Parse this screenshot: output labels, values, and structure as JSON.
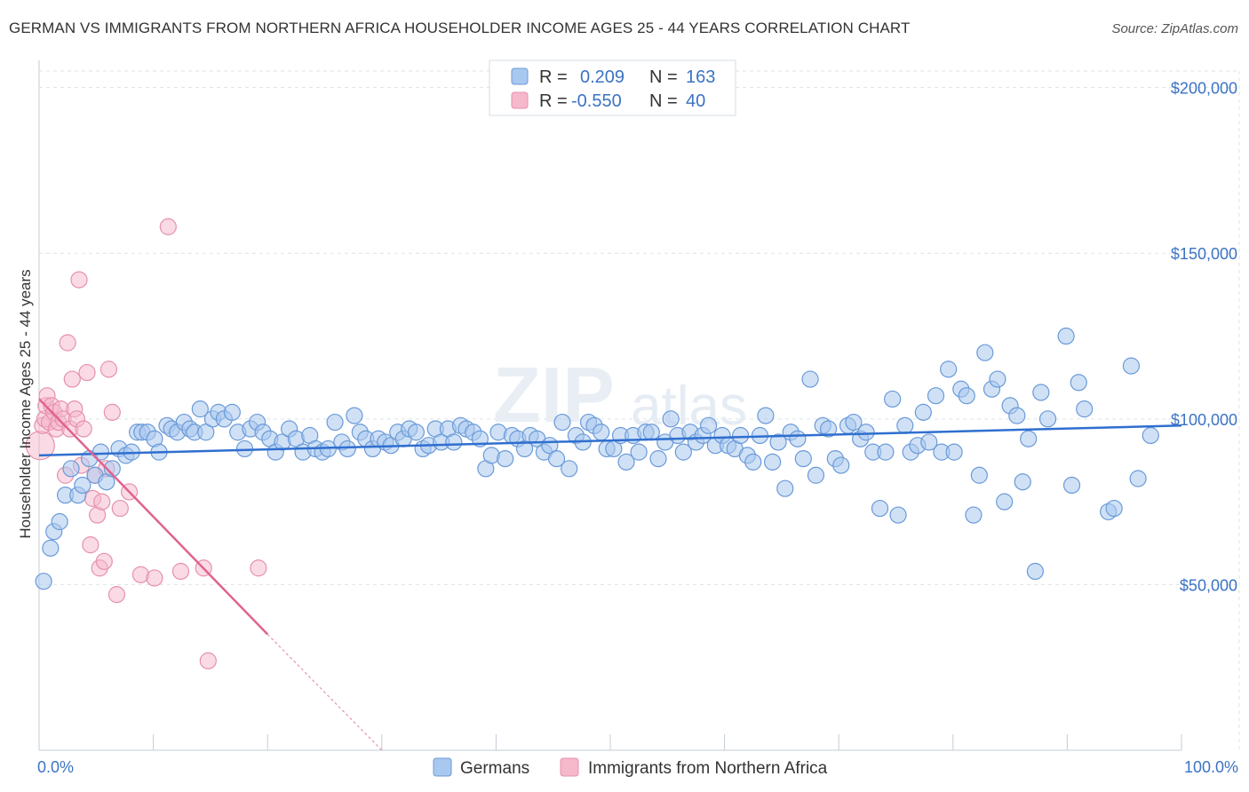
{
  "header": {
    "title": "GERMAN VS IMMIGRANTS FROM NORTHERN AFRICA HOUSEHOLDER INCOME AGES 25 - 44 YEARS CORRELATION CHART",
    "source": "Source: ZipAtlas.com"
  },
  "watermark": {
    "zip": "ZIP",
    "atlas": "atlas"
  },
  "legend_top": {
    "rows": [
      {
        "r_label": "R =",
        "r_value": "0.209",
        "n_label": "N =",
        "n_value": "163"
      },
      {
        "r_label": "R =",
        "r_value": "-0.550",
        "n_label": "N =",
        "n_value": "40"
      }
    ]
  },
  "legend_bottom": {
    "items": [
      "Germans",
      "Immigrants from Northern Africa"
    ]
  },
  "colors": {
    "germans_fill": "#a9c8ef",
    "germans_stroke": "#6a9ad8",
    "germans_line": "#2f6fcf",
    "immigrants_fill": "#f6b8cb",
    "immigrants_stroke": "#e690ad",
    "immigrants_line": "#e0628f",
    "grid": "#dde3ea",
    "axis_text": "#3b73c4"
  },
  "chart_data": {
    "type": "scatter",
    "title": "GERMAN VS IMMIGRANTS FROM NORTHERN AFRICA HOUSEHOLDER INCOME AGES 25 - 44 YEARS CORRELATION CHART",
    "xlabel": "",
    "ylabel": "Householder Income Ages 25 - 44 years",
    "xlim": [
      0,
      100
    ],
    "ylim": [
      0,
      205000
    ],
    "x_tick_labels": [
      "0.0%",
      "100.0%"
    ],
    "y_ticks": [
      50000,
      100000,
      150000,
      200000
    ],
    "y_tick_labels": [
      "$50,000",
      "$100,000",
      "$150,000",
      "$200,000"
    ],
    "grid": true,
    "legend_position": "top-center",
    "series": [
      {
        "name": "Germans",
        "r": 0.209,
        "n": 163,
        "trend": {
          "x": [
            0,
            100
          ],
          "y": [
            89000,
            98000
          ]
        },
        "points": [
          [
            0.4,
            51000
          ],
          [
            1.0,
            61000
          ],
          [
            1.3,
            66000
          ],
          [
            1.8,
            69000
          ],
          [
            2.3,
            77000
          ],
          [
            2.8,
            85000
          ],
          [
            3.4,
            77000
          ],
          [
            3.8,
            80000
          ],
          [
            4.4,
            88000
          ],
          [
            4.9,
            83000
          ],
          [
            5.4,
            90000
          ],
          [
            5.9,
            81000
          ],
          [
            6.4,
            85000
          ],
          [
            7.0,
            91000
          ],
          [
            7.6,
            89000
          ],
          [
            8.1,
            90000
          ],
          [
            8.6,
            96000
          ],
          [
            9.0,
            96000
          ],
          [
            9.5,
            96000
          ],
          [
            10.1,
            94000
          ],
          [
            10.5,
            90000
          ],
          [
            11.2,
            98000
          ],
          [
            11.6,
            97000
          ],
          [
            12.1,
            96000
          ],
          [
            12.7,
            99000
          ],
          [
            13.2,
            97000
          ],
          [
            13.6,
            96000
          ],
          [
            14.1,
            103000
          ],
          [
            14.6,
            96000
          ],
          [
            15.2,
            100000
          ],
          [
            15.7,
            102000
          ],
          [
            16.2,
            100000
          ],
          [
            16.9,
            102000
          ],
          [
            17.4,
            96000
          ],
          [
            18.0,
            91000
          ],
          [
            18.5,
            97000
          ],
          [
            19.1,
            99000
          ],
          [
            19.6,
            96000
          ],
          [
            20.2,
            94000
          ],
          [
            20.7,
            90000
          ],
          [
            21.3,
            93000
          ],
          [
            21.9,
            97000
          ],
          [
            22.5,
            94000
          ],
          [
            23.1,
            90000
          ],
          [
            23.7,
            95000
          ],
          [
            24.2,
            91000
          ],
          [
            24.8,
            90000
          ],
          [
            25.3,
            91000
          ],
          [
            25.9,
            99000
          ],
          [
            26.5,
            93000
          ],
          [
            27.0,
            91000
          ],
          [
            27.6,
            101000
          ],
          [
            28.1,
            96000
          ],
          [
            28.6,
            94000
          ],
          [
            29.2,
            91000
          ],
          [
            29.7,
            94000
          ],
          [
            30.3,
            93000
          ],
          [
            30.8,
            92000
          ],
          [
            31.4,
            96000
          ],
          [
            31.9,
            94000
          ],
          [
            32.4,
            97000
          ],
          [
            33.0,
            96000
          ],
          [
            33.6,
            91000
          ],
          [
            34.1,
            92000
          ],
          [
            34.7,
            97000
          ],
          [
            35.2,
            93000
          ],
          [
            35.8,
            97000
          ],
          [
            36.3,
            93000
          ],
          [
            36.9,
            98000
          ],
          [
            37.4,
            97000
          ],
          [
            38.0,
            96000
          ],
          [
            38.6,
            94000
          ],
          [
            39.1,
            85000
          ],
          [
            39.6,
            89000
          ],
          [
            40.2,
            96000
          ],
          [
            40.8,
            88000
          ],
          [
            41.4,
            95000
          ],
          [
            41.9,
            94000
          ],
          [
            42.5,
            91000
          ],
          [
            43.0,
            95000
          ],
          [
            43.6,
            94000
          ],
          [
            44.2,
            90000
          ],
          [
            44.7,
            92000
          ],
          [
            45.3,
            88000
          ],
          [
            45.8,
            99000
          ],
          [
            46.4,
            85000
          ],
          [
            47.0,
            95000
          ],
          [
            47.6,
            93000
          ],
          [
            48.1,
            99000
          ],
          [
            48.6,
            98000
          ],
          [
            49.2,
            96000
          ],
          [
            49.7,
            91000
          ],
          [
            50.3,
            91000
          ],
          [
            50.9,
            95000
          ],
          [
            51.4,
            87000
          ],
          [
            52.0,
            95000
          ],
          [
            52.5,
            90000
          ],
          [
            53.1,
            96000
          ],
          [
            53.6,
            96000
          ],
          [
            54.2,
            88000
          ],
          [
            54.8,
            93000
          ],
          [
            55.3,
            100000
          ],
          [
            55.9,
            95000
          ],
          [
            56.4,
            90000
          ],
          [
            57.0,
            96000
          ],
          [
            57.5,
            93000
          ],
          [
            58.1,
            95000
          ],
          [
            58.6,
            98000
          ],
          [
            59.2,
            92000
          ],
          [
            59.8,
            95000
          ],
          [
            60.3,
            92000
          ],
          [
            60.9,
            91000
          ],
          [
            61.4,
            95000
          ],
          [
            62.0,
            89000
          ],
          [
            62.5,
            87000
          ],
          [
            63.1,
            95000
          ],
          [
            63.6,
            101000
          ],
          [
            64.2,
            87000
          ],
          [
            64.7,
            93000
          ],
          [
            65.3,
            79000
          ],
          [
            65.8,
            96000
          ],
          [
            66.4,
            94000
          ],
          [
            66.9,
            88000
          ],
          [
            67.5,
            112000
          ],
          [
            68.0,
            83000
          ],
          [
            68.6,
            98000
          ],
          [
            69.1,
            97000
          ],
          [
            69.7,
            88000
          ],
          [
            70.2,
            86000
          ],
          [
            70.8,
            98000
          ],
          [
            71.3,
            99000
          ],
          [
            71.9,
            94000
          ],
          [
            72.4,
            96000
          ],
          [
            73.0,
            90000
          ],
          [
            73.6,
            73000
          ],
          [
            74.1,
            90000
          ],
          [
            74.7,
            106000
          ],
          [
            75.2,
            71000
          ],
          [
            75.8,
            98000
          ],
          [
            76.3,
            90000
          ],
          [
            76.9,
            92000
          ],
          [
            77.4,
            102000
          ],
          [
            77.9,
            93000
          ],
          [
            78.5,
            107000
          ],
          [
            79.0,
            90000
          ],
          [
            79.6,
            115000
          ],
          [
            80.1,
            90000
          ],
          [
            80.7,
            109000
          ],
          [
            81.2,
            107000
          ],
          [
            81.8,
            71000
          ],
          [
            82.3,
            83000
          ],
          [
            82.8,
            120000
          ],
          [
            83.4,
            109000
          ],
          [
            83.9,
            112000
          ],
          [
            84.5,
            75000
          ],
          [
            85.0,
            104000
          ],
          [
            85.6,
            101000
          ],
          [
            86.1,
            81000
          ],
          [
            86.6,
            94000
          ],
          [
            87.2,
            54000
          ],
          [
            87.7,
            108000
          ],
          [
            88.3,
            100000
          ],
          [
            89.9,
            125000
          ],
          [
            90.4,
            80000
          ],
          [
            91.0,
            111000
          ],
          [
            91.5,
            103000
          ],
          [
            93.6,
            72000
          ],
          [
            94.1,
            73000
          ],
          [
            95.6,
            116000
          ],
          [
            96.2,
            82000
          ],
          [
            97.3,
            95000
          ]
        ]
      },
      {
        "name": "Immigrants from Northern Africa",
        "r": -0.55,
        "n": 40,
        "trend": {
          "x": [
            0,
            20
          ],
          "y": [
            106000,
            35000
          ]
        },
        "trend_extension": {
          "x": [
            20,
            30
          ],
          "y": [
            35000,
            0
          ]
        },
        "points": [
          [
            0.1,
            92000
          ],
          [
            0.3,
            98000
          ],
          [
            0.5,
            100000
          ],
          [
            0.6,
            104000
          ],
          [
            0.7,
            107000
          ],
          [
            0.9,
            99000
          ],
          [
            1.1,
            104000
          ],
          [
            1.3,
            102000
          ],
          [
            1.5,
            97000
          ],
          [
            1.7,
            99000
          ],
          [
            1.9,
            103000
          ],
          [
            2.1,
            100000
          ],
          [
            2.3,
            83000
          ],
          [
            2.5,
            123000
          ],
          [
            2.7,
            97000
          ],
          [
            2.9,
            112000
          ],
          [
            3.1,
            103000
          ],
          [
            3.3,
            100000
          ],
          [
            3.5,
            142000
          ],
          [
            3.7,
            86000
          ],
          [
            3.9,
            97000
          ],
          [
            4.2,
            114000
          ],
          [
            4.5,
            62000
          ],
          [
            4.7,
            76000
          ],
          [
            4.9,
            83000
          ],
          [
            5.1,
            71000
          ],
          [
            5.3,
            55000
          ],
          [
            5.5,
            75000
          ],
          [
            5.7,
            57000
          ],
          [
            5.9,
            85000
          ],
          [
            6.1,
            115000
          ],
          [
            6.4,
            102000
          ],
          [
            6.8,
            47000
          ],
          [
            7.1,
            73000
          ],
          [
            7.9,
            78000
          ],
          [
            8.9,
            53000
          ],
          [
            10.1,
            52000
          ],
          [
            11.3,
            158000
          ],
          [
            12.4,
            54000
          ],
          [
            14.4,
            55000
          ],
          [
            14.8,
            27000
          ],
          [
            19.2,
            55000
          ]
        ]
      }
    ]
  }
}
